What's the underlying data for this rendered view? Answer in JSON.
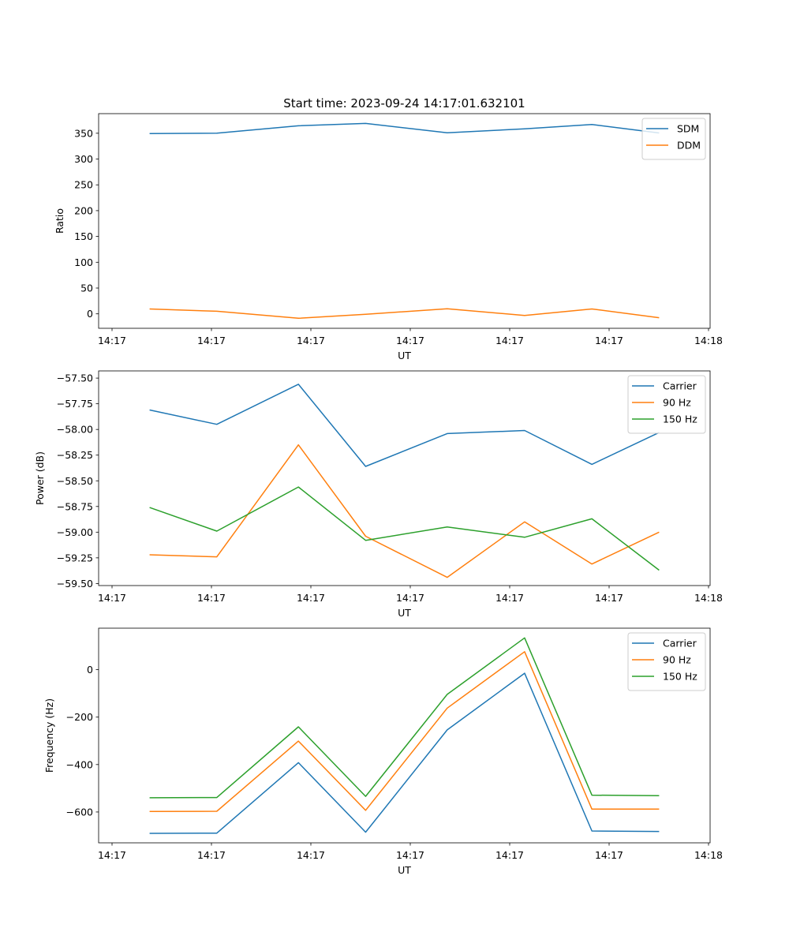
{
  "figure_title": "Start time: 2023-09-24 14:17:01.632101",
  "x_tick_labels": [
    "14:17",
    "14:17",
    "14:17",
    "14:17",
    "14:17",
    "14:17",
    "14:18"
  ],
  "chart_data": [
    {
      "type": "line",
      "title": "Start time: 2023-09-24 14:17:01.632101",
      "xlabel": "UT",
      "ylabel": "Ratio",
      "x_time_seconds": [
        0.5,
        1.16,
        1.96,
        2.62,
        3.42,
        4.18,
        4.84,
        5.5
      ],
      "xlim": [
        0,
        6.0
      ],
      "ylim": [
        -28,
        388
      ],
      "yticks": [
        0,
        50,
        100,
        150,
        200,
        250,
        300,
        350
      ],
      "ytick_labels": [
        "0",
        "50",
        "100",
        "150",
        "200",
        "250",
        "300",
        "350"
      ],
      "legend_position": "top-right",
      "series": [
        {
          "name": "SDM",
          "color": "#1f77b4",
          "values": [
            349.5,
            350,
            364.5,
            369,
            351,
            358.5,
            367,
            350.5
          ]
        },
        {
          "name": "DDM",
          "color": "#ff7f0e",
          "values": [
            9.5,
            5,
            -8.5,
            -1,
            10,
            -3,
            9.5,
            -7.5
          ]
        }
      ]
    },
    {
      "type": "line",
      "xlabel": "UT",
      "ylabel": "Power (dB)",
      "x_time_seconds": [
        0.5,
        1.16,
        1.96,
        2.62,
        3.42,
        4.18,
        4.84,
        5.5
      ],
      "xlim": [
        0,
        6.0
      ],
      "ylim": [
        -59.52,
        -57.43
      ],
      "yticks": [
        -57.5,
        -57.75,
        -58.0,
        -58.25,
        -58.5,
        -58.75,
        -59.0,
        -59.25,
        -59.5
      ],
      "ytick_labels": [
        "−57.50",
        "−57.75",
        "−58.00",
        "−58.25",
        "−58.50",
        "−58.75",
        "−59.00",
        "−59.25",
        "−59.50"
      ],
      "legend_position": "top-right",
      "series": [
        {
          "name": "Carrier",
          "color": "#1f77b4",
          "values": [
            -57.81,
            -57.95,
            -57.56,
            -58.36,
            -58.04,
            -58.01,
            -58.34,
            -58.03
          ]
        },
        {
          "name": "90 Hz",
          "color": "#ff7f0e",
          "values": [
            -59.22,
            -59.24,
            -58.15,
            -59.04,
            -59.44,
            -58.9,
            -59.31,
            -59.0
          ]
        },
        {
          "name": "150 Hz",
          "color": "#2ca02c",
          "values": [
            -58.76,
            -58.99,
            -58.56,
            -59.08,
            -58.95,
            -59.05,
            -58.87,
            -59.37
          ]
        }
      ]
    },
    {
      "type": "line",
      "xlabel": "UT",
      "ylabel": "Frequency (Hz)",
      "x_time_seconds": [
        0.5,
        1.16,
        1.96,
        2.62,
        3.42,
        4.18,
        4.84,
        5.5
      ],
      "xlim": [
        0,
        6.0
      ],
      "ylim": [
        -730,
        175
      ],
      "yticks": [
        -600,
        -400,
        -200,
        0
      ],
      "ytick_labels": [
        "−600",
        "−400",
        "−200",
        "0"
      ],
      "legend_position": "top-right",
      "series": [
        {
          "name": "Carrier",
          "color": "#1f77b4",
          "values": [
            -690,
            -689,
            -392,
            -685,
            -254,
            -15,
            -680,
            -682
          ]
        },
        {
          "name": "90 Hz",
          "color": "#ff7f0e",
          "values": [
            -598,
            -597,
            -301,
            -593,
            -162,
            76,
            -588,
            -588
          ]
        },
        {
          "name": "150 Hz",
          "color": "#2ca02c",
          "values": [
            -540,
            -539,
            -241,
            -534,
            -104,
            134,
            -529,
            -531
          ]
        }
      ]
    }
  ]
}
